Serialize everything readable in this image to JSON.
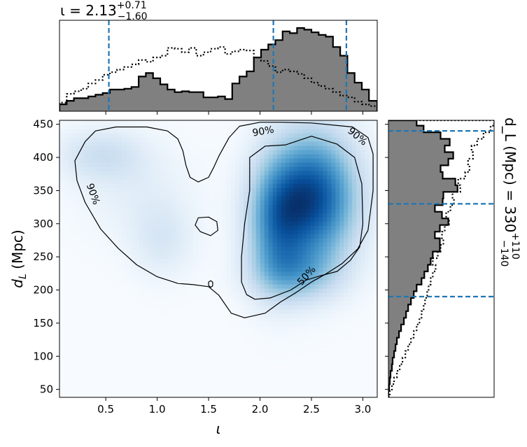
{
  "chart_data": [
    {
      "type": "heatmap",
      "panel": "joint",
      "xlabel": "ι",
      "ylabel": "d_L (Mpc)",
      "xlim": [
        0.05,
        3.14
      ],
      "ylim": [
        38,
        456
      ],
      "x_ticks": [
        "0.5",
        "1.0",
        "1.5",
        "2.0",
        "2.5",
        "3.0"
      ],
      "x_tick_values": [
        0.5,
        1.0,
        1.5,
        2.0,
        2.5,
        3.0
      ],
      "y_ticks": [
        "50",
        "100",
        "150",
        "200",
        "250",
        "300",
        "350",
        "400",
        "450"
      ],
      "y_tick_values": [
        50,
        100,
        150,
        200,
        250,
        300,
        350,
        400,
        450
      ],
      "colormap": "Blues",
      "density_components": [
        {
          "x": 2.52,
          "y": 340,
          "sx": 0.3,
          "sy": 68,
          "w": 1.0
        },
        {
          "x": 2.15,
          "y": 300,
          "sx": 0.2,
          "sy": 65,
          "w": 0.55
        },
        {
          "x": 2.35,
          "y": 225,
          "sx": 0.3,
          "sy": 30,
          "w": 0.35
        },
        {
          "x": 0.45,
          "y": 405,
          "sx": 0.3,
          "sy": 28,
          "w": 0.22
        },
        {
          "x": 1.05,
          "y": 275,
          "sx": 0.22,
          "sy": 40,
          "w": 0.16
        },
        {
          "x": 0.8,
          "y": 350,
          "sx": 0.4,
          "sy": 50,
          "w": 0.1
        }
      ],
      "contours": [
        {
          "level": "50%",
          "label": "50%",
          "label_pos": [
            2.45,
            222
          ],
          "points": [
            [
              2.25,
              419
            ],
            [
              2.5,
              432
            ],
            [
              2.75,
              420
            ],
            [
              2.92,
              400
            ],
            [
              2.99,
              360
            ],
            [
              3.0,
              300
            ],
            [
              2.97,
              265
            ],
            [
              2.88,
              245
            ],
            [
              2.75,
              228
            ],
            [
              2.6,
              222
            ],
            [
              2.45,
              215
            ],
            [
              2.3,
              200
            ],
            [
              2.1,
              188
            ],
            [
              1.95,
              186
            ],
            [
              1.87,
              193
            ],
            [
              1.82,
              212
            ],
            [
              1.82,
              250
            ],
            [
              1.85,
              300
            ],
            [
              1.9,
              350
            ],
            [
              1.9,
              400
            ],
            [
              2.05,
              417
            ]
          ]
        },
        {
          "level": "90%",
          "label": "90%",
          "label_pos": [
            0.38,
            345
          ],
          "points": [
            [
              0.3,
              424
            ],
            [
              0.4,
              440
            ],
            [
              0.6,
              446
            ],
            [
              0.9,
              446
            ],
            [
              1.1,
              440
            ],
            [
              1.2,
              428
            ],
            [
              1.25,
              410
            ],
            [
              1.28,
              388
            ],
            [
              1.32,
              370
            ],
            [
              1.4,
              363
            ],
            [
              1.5,
              370
            ],
            [
              1.55,
              385
            ],
            [
              1.6,
              402
            ],
            [
              1.7,
              430
            ],
            [
              1.8,
              447
            ],
            [
              2.0,
              453
            ],
            [
              2.2,
              453
            ],
            [
              2.5,
              452
            ],
            [
              2.9,
              446
            ],
            [
              3.05,
              430
            ],
            [
              3.1,
              405
            ],
            [
              3.1,
              350
            ],
            [
              3.05,
              290
            ],
            [
              2.95,
              262
            ],
            [
              2.8,
              240
            ],
            [
              2.65,
              225
            ],
            [
              2.5,
              212
            ],
            [
              2.35,
              196
            ],
            [
              2.2,
              182
            ],
            [
              2.05,
              165
            ],
            [
              1.85,
              158
            ],
            [
              1.72,
              165
            ],
            [
              1.6,
              192
            ],
            [
              1.5,
              205
            ],
            [
              1.35,
              208
            ],
            [
              1.2,
              210
            ],
            [
              1.0,
              220
            ],
            [
              0.8,
              238
            ],
            [
              0.62,
              263
            ],
            [
              0.45,
              292
            ],
            [
              0.3,
              332
            ],
            [
              0.22,
              365
            ],
            [
              0.2,
              395
            ]
          ]
        },
        {
          "level": "90%-island-1",
          "label": "",
          "label_pos": [
            1.5,
            300
          ],
          "points": [
            [
              1.4,
              309
            ],
            [
              1.5,
              310
            ],
            [
              1.58,
              303
            ],
            [
              1.59,
              290
            ],
            [
              1.52,
              282
            ],
            [
              1.42,
              288
            ],
            [
              1.37,
              298
            ]
          ]
        },
        {
          "level": "90%-island-2",
          "label": "",
          "label_pos": [
            1.52,
            210
          ],
          "points": [
            [
              1.52,
              214
            ],
            [
              1.54,
              212
            ],
            [
              1.54,
              206
            ],
            [
              1.52,
              204
            ],
            [
              1.5,
              207
            ],
            [
              1.5,
              212
            ]
          ]
        }
      ],
      "extra_contour_labels": [
        {
          "label": "90%",
          "pos": [
            2.03,
            440
          ]
        },
        {
          "label": "90%",
          "pos": [
            2.95,
            432
          ]
        }
      ]
    },
    {
      "type": "histogram",
      "panel": "top-marginal",
      "title": "ι = 2.13",
      "title_sup": "+0.71",
      "title_sub": "−1.60",
      "xlim": [
        0.05,
        3.14
      ],
      "median": 2.13,
      "interval": [
        0.53,
        2.84
      ],
      "bin_edges": [
        0.05,
        0.12,
        0.19,
        0.26,
        0.33,
        0.4,
        0.47,
        0.54,
        0.61,
        0.68,
        0.75,
        0.82,
        0.89,
        0.96,
        1.03,
        1.1,
        1.17,
        1.24,
        1.31,
        1.38,
        1.45,
        1.52,
        1.59,
        1.66,
        1.73,
        1.8,
        1.87,
        1.94,
        2.01,
        2.08,
        2.15,
        2.22,
        2.29,
        2.36,
        2.43,
        2.5,
        2.57,
        2.64,
        2.71,
        2.78,
        2.85,
        2.92,
        2.99,
        3.06,
        3.14
      ],
      "filled_counts": [
        8,
        12,
        15,
        15,
        17,
        19,
        21,
        25,
        25,
        26,
        28,
        40,
        44,
        38,
        31,
        25,
        22,
        23,
        22,
        22,
        16,
        16,
        17,
        14,
        32,
        40,
        46,
        62,
        71,
        77,
        82,
        92,
        90,
        96,
        94,
        91,
        88,
        86,
        74,
        64,
        44,
        33,
        25,
        12
      ],
      "dotted_counts": [
        10,
        20,
        23,
        26,
        32,
        36,
        42,
        45,
        48,
        51,
        54,
        59,
        57,
        62,
        64,
        73,
        72,
        68,
        73,
        64,
        68,
        72,
        74,
        66,
        69,
        71,
        70,
        62,
        58,
        52,
        45,
        48,
        46,
        43,
        38,
        33,
        29,
        26,
        22,
        18,
        16,
        11,
        8,
        6
      ]
    },
    {
      "type": "histogram",
      "panel": "right-marginal",
      "orientation": "horizontal",
      "title": "d_L (Mpc) = 330",
      "title_sup": "+110",
      "title_sub": "−140",
      "ylim": [
        38,
        456
      ],
      "median": 330,
      "interval": [
        190,
        440
      ],
      "bin_edges": [
        38,
        48,
        58,
        68,
        78,
        88,
        98,
        108,
        118,
        128,
        138,
        148,
        158,
        168,
        178,
        188,
        198,
        208,
        218,
        228,
        238,
        248,
        258,
        268,
        278,
        288,
        298,
        308,
        318,
        328,
        338,
        348,
        358,
        368,
        378,
        388,
        398,
        408,
        418,
        428,
        438,
        448,
        456
      ],
      "filled_counts": [
        0,
        1,
        2,
        3,
        5,
        6,
        8,
        10,
        12,
        15,
        18,
        22,
        25,
        28,
        32,
        36,
        40,
        47,
        51,
        56,
        60,
        63,
        73,
        73,
        66,
        73,
        85,
        76,
        66,
        77,
        78,
        98,
        95,
        77,
        74,
        85,
        92,
        80,
        87,
        74,
        50,
        40
      ],
      "dotted_counts": [
        2,
        5,
        8,
        12,
        16,
        20,
        24,
        28,
        32,
        36,
        40,
        44,
        47,
        50,
        52,
        55,
        57,
        60,
        63,
        67,
        63,
        70,
        74,
        78,
        76,
        80,
        86,
        82,
        88,
        93,
        91,
        102,
        99,
        109,
        115,
        113,
        120,
        118,
        126,
        135,
        145,
        150
      ]
    }
  ]
}
